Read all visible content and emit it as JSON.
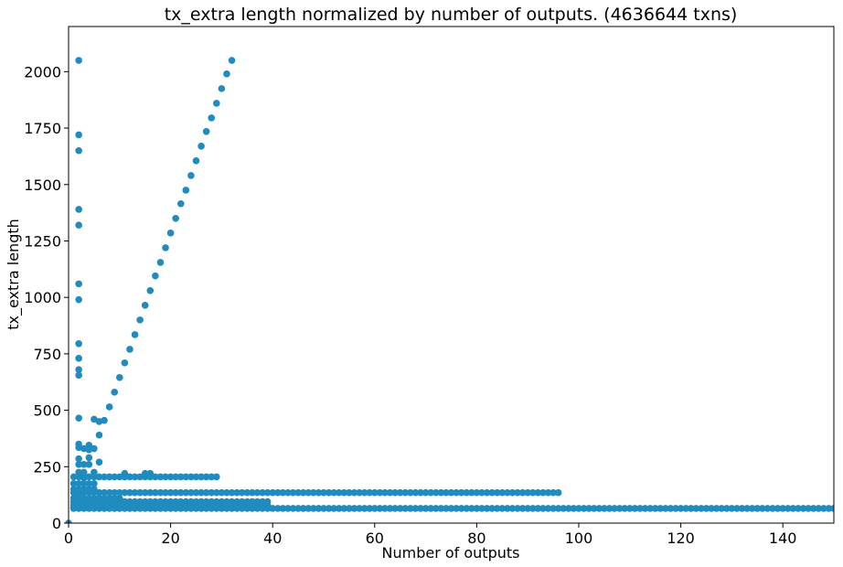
{
  "chart_data": {
    "type": "scatter",
    "title": "tx_extra length normalized by number of outputs. (4636644 txns)",
    "xlabel": "Number of outputs",
    "ylabel": "tx_extra length",
    "xlim": [
      0,
      150
    ],
    "ylim": [
      0,
      2200
    ],
    "xticks": [
      0,
      20,
      40,
      60,
      80,
      100,
      120,
      140
    ],
    "yticks": [
      0,
      250,
      500,
      750,
      1000,
      1250,
      1500,
      1750,
      2000
    ],
    "grid": false,
    "legend": "none",
    "marker_color": "#1f8bbf",
    "series": [
      {
        "x": [
          0,
          1,
          2,
          3,
          4,
          5,
          6,
          7,
          8,
          9,
          10,
          11,
          12,
          13,
          14,
          15,
          16,
          17,
          18,
          19,
          20,
          21,
          22,
          23,
          24,
          25,
          26,
          27,
          28,
          29,
          30,
          31,
          32
        ],
        "y": [
          0,
          70,
          130,
          200,
          260,
          330,
          390,
          455,
          515,
          580,
          645,
          710,
          770,
          835,
          900,
          965,
          1030,
          1095,
          1155,
          1220,
          1285,
          1350,
          1415,
          1475,
          1540,
          1605,
          1670,
          1735,
          1795,
          1860,
          1925,
          1990,
          2050
        ]
      },
      {
        "x": [
          2,
          2,
          2,
          2,
          2,
          2,
          2,
          2,
          2,
          2,
          2,
          2,
          2,
          2,
          2,
          2,
          2
        ],
        "y": [
          2050,
          1720,
          1650,
          1390,
          1320,
          1060,
          990,
          795,
          730,
          680,
          655,
          465,
          350,
          335,
          285,
          260,
          225
        ]
      },
      {
        "x": [
          3,
          3,
          3,
          4,
          4,
          4,
          5,
          5,
          6,
          6,
          11,
          15,
          16
        ],
        "y": [
          330,
          260,
          225,
          345,
          325,
          290,
          460,
          225,
          450,
          270,
          220,
          220,
          220
        ]
      },
      {
        "x_range": [
          1,
          150
        ],
        "x_step": 1,
        "y_values": [
          65
        ]
      },
      {
        "x_range": [
          1,
          39
        ],
        "x_step": 1,
        "y_values": [
          80,
          95
        ]
      },
      {
        "x_range": [
          1,
          96
        ],
        "x_step": 1,
        "y_values": [
          135
        ]
      },
      {
        "x_range": [
          1,
          29
        ],
        "x_step": 1,
        "y_values": [
          205
        ]
      },
      {
        "x_range": [
          1,
          10
        ],
        "x_step": 1,
        "y_values": [
          110
        ]
      },
      {
        "x_range": [
          1,
          5
        ],
        "x_step": 1,
        "y_values": [
          150,
          175
        ]
      }
    ]
  }
}
